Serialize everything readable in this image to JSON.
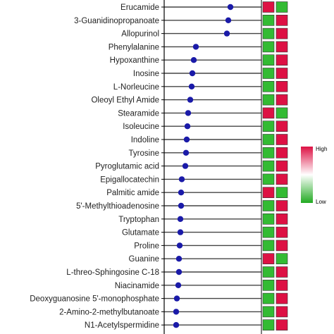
{
  "chart_data": {
    "type": "lollipop",
    "title": "",
    "xlabel": "",
    "ylabel": "",
    "point_color": "#1a1aa8",
    "categories": [
      "Erucamide",
      "3-Guanidinopropanoate",
      "Allopurinol",
      "Phenylalanine",
      "Hypoxanthine",
      "Inosine",
      "L-Norleucine",
      "Oleoyl Ethyl Amide",
      "Stearamide",
      "Isoleucine",
      "Indoline",
      "Tyrosine",
      "Pyroglutamic acid",
      "Epigallocatechin",
      "Palmitic amide",
      "5'-Methylthioadenosine",
      "Tryptophan",
      "Glutamate",
      "Proline",
      "Guanine",
      "L-threo-Sphingosine C-18",
      "Niacinamide",
      "Deoxyguanosine 5'-monophosphate",
      "2-Amino-2-methylbutanoate",
      "N1-Acetylspermidine"
    ],
    "values": [
      0.95,
      0.92,
      0.9,
      0.46,
      0.43,
      0.41,
      0.4,
      0.38,
      0.35,
      0.34,
      0.33,
      0.32,
      0.31,
      0.26,
      0.25,
      0.25,
      0.24,
      0.24,
      0.23,
      0.22,
      0.22,
      0.21,
      0.19,
      0.18,
      0.18
    ],
    "heatmap": {
      "columns": 2,
      "cells": [
        [
          "high",
          "low"
        ],
        [
          "low",
          "high"
        ],
        [
          "low",
          "high"
        ],
        [
          "low",
          "high"
        ],
        [
          "low",
          "high"
        ],
        [
          "low",
          "high"
        ],
        [
          "low",
          "high"
        ],
        [
          "low",
          "high"
        ],
        [
          "high",
          "low"
        ],
        [
          "low",
          "high"
        ],
        [
          "low",
          "high"
        ],
        [
          "low",
          "high"
        ],
        [
          "low",
          "high"
        ],
        [
          "low",
          "high"
        ],
        [
          "high",
          "low"
        ],
        [
          "low",
          "high"
        ],
        [
          "low",
          "high"
        ],
        [
          "low",
          "high"
        ],
        [
          "low",
          "high"
        ],
        [
          "high",
          "low"
        ],
        [
          "low",
          "high"
        ],
        [
          "low",
          "high"
        ],
        [
          "low",
          "high"
        ],
        [
          "low",
          "high"
        ],
        [
          "low",
          "high"
        ]
      ],
      "colors": {
        "high": "#dd1144",
        "low": "#33bb33"
      }
    },
    "legend": {
      "high_label": "High",
      "low_label": "Low",
      "high_color": "#dd1144",
      "mid_color": "#ffffff",
      "low_color": "#22aa22",
      "placement": "right"
    }
  }
}
